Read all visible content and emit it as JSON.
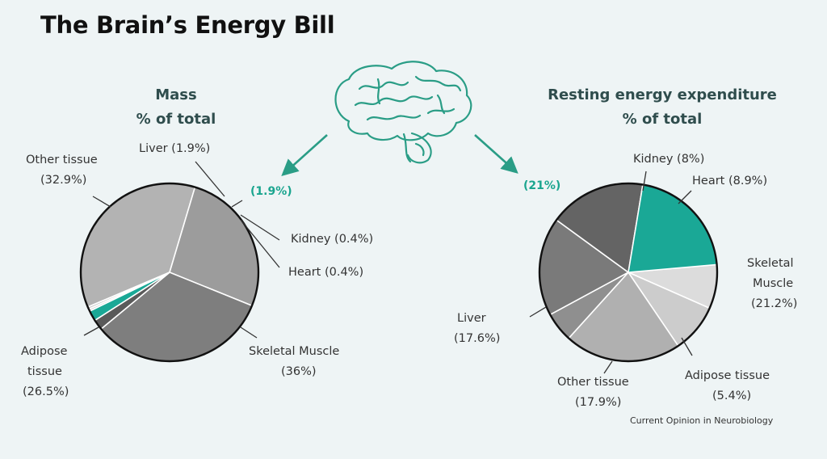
{
  "title": "The Brain’s Energy Bill",
  "source": "Current Opinion in Neurobiology",
  "colors": {
    "brain": "#1aa896",
    "brain_label": "#1aa58f",
    "accent": "#2a9d86"
  },
  "chart_data": [
    {
      "type": "pie",
      "title_line1": "Mass",
      "title_line2": "% of total",
      "slices": [
        {
          "name": "Skeletal Muscle",
          "value": 36,
          "label": "Skeletal Muscle",
          "value_label": "(36%)",
          "color": "#b3b3b3"
        },
        {
          "name": "Adipose tissue",
          "value": 26.5,
          "label": "Adipose tissue",
          "value_label": "(26.5%)",
          "color": "#9c9c9c"
        },
        {
          "name": "Other tissue",
          "value": 32.9,
          "label": "Other tissue",
          "value_label": "(32.9%)",
          "color": "#7e7e7e"
        },
        {
          "name": "Liver",
          "value": 1.9,
          "label": "Liver (1.9%)",
          "value_label": "",
          "color": "#5a5a5a"
        },
        {
          "name": "Brain",
          "value": 1.9,
          "label": "",
          "value_label": "(1.9%)",
          "color": "#1aa896"
        },
        {
          "name": "Kidney",
          "value": 0.4,
          "label": "Kidney (0.4%)",
          "value_label": "",
          "color": "#dadada"
        },
        {
          "name": "Heart",
          "value": 0.4,
          "label": "Heart (0.4%)",
          "value_label": "",
          "color": "#c8c8c8"
        }
      ]
    },
    {
      "type": "pie",
      "title_line1": "Resting energy expenditure",
      "title_line2": "% of total",
      "slices": [
        {
          "name": "Kidney",
          "value": 8,
          "label": "Kidney (8%)",
          "value_label": "",
          "color": "#dcdcdc"
        },
        {
          "name": "Heart",
          "value": 8.9,
          "label": "Heart (8.9%)",
          "value_label": "",
          "color": "#cccccc"
        },
        {
          "name": "Skeletal Muscle",
          "value": 21.2,
          "label": "Skeletal Muscle",
          "value_label": "(21.2%)",
          "color": "#b0b0b0"
        },
        {
          "name": "Adipose tissue",
          "value": 5.4,
          "label": "Adipose tissue",
          "value_label": "(5.4%)",
          "color": "#8f8f8f"
        },
        {
          "name": "Other tissue",
          "value": 17.9,
          "label": "Other tissue",
          "value_label": "(17.9%)",
          "color": "#7a7a7a"
        },
        {
          "name": "Liver",
          "value": 17.6,
          "label": "Liver",
          "value_label": "(17.6%)",
          "color": "#646464"
        },
        {
          "name": "Brain",
          "value": 21,
          "label": "",
          "value_label": "(21%)",
          "color": "#1aa896"
        }
      ]
    }
  ]
}
